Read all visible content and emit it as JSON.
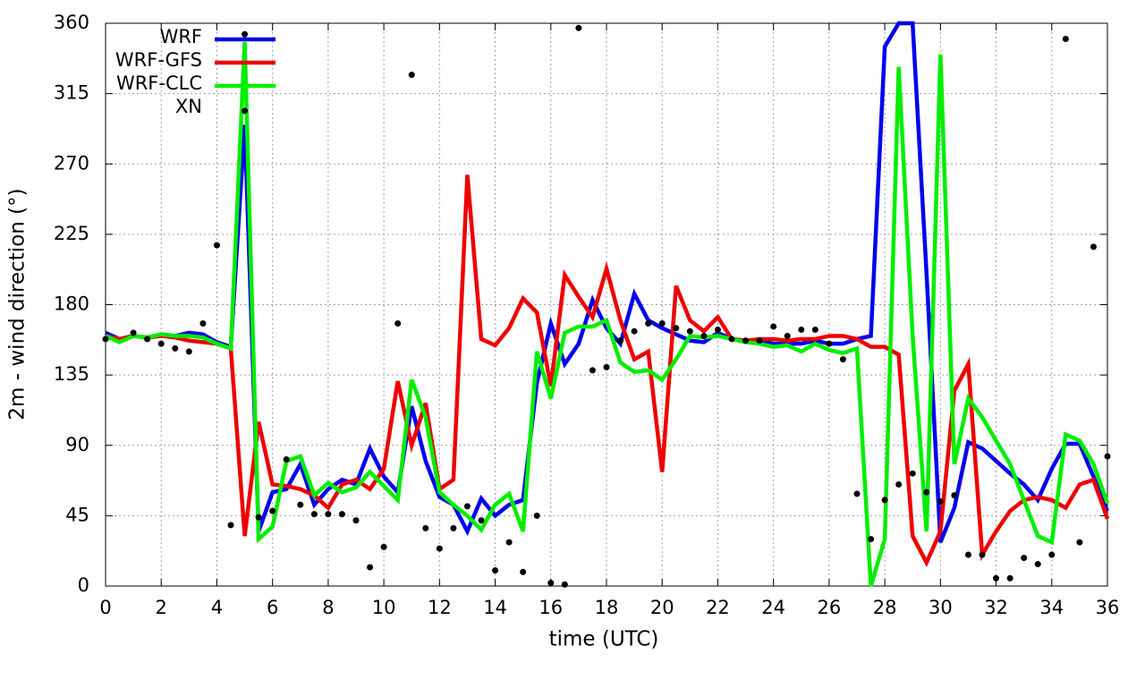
{
  "chart_data": {
    "type": "line",
    "xlabel": "time (UTC)",
    "ylabel": "2m - wind direction (°)",
    "x": [
      0,
      0.5,
      1,
      1.5,
      2,
      2.5,
      3,
      3.5,
      4,
      4.5,
      5,
      5.5,
      6,
      6.5,
      7,
      7.5,
      8,
      8.5,
      9,
      9.5,
      10,
      10.5,
      11,
      11.5,
      12,
      12.5,
      13,
      13.5,
      14,
      14.5,
      15,
      15.5,
      16,
      16.5,
      17,
      17.5,
      18,
      18.5,
      19,
      19.5,
      20,
      20.5,
      21,
      21.5,
      22,
      22.5,
      23,
      23.5,
      24,
      24.5,
      25,
      25.5,
      26,
      26.5,
      27,
      27.5,
      28,
      28.5,
      29,
      29.5,
      30,
      30.5,
      31,
      31.5,
      32,
      32.5,
      33,
      33.5,
      34,
      34.5,
      35,
      35.5,
      36
    ],
    "series": [
      {
        "name": "WRF",
        "color": "#0000ee",
        "values": [
          162,
          158,
          160,
          159,
          161,
          160,
          162,
          161,
          156,
          153,
          295,
          35,
          60,
          62,
          78,
          52,
          62,
          68,
          65,
          88,
          70,
          60,
          115,
          80,
          57,
          52,
          35,
          56,
          45,
          52,
          55,
          130,
          168,
          142,
          155,
          183,
          165,
          155,
          187,
          170,
          165,
          161,
          157,
          156,
          162,
          158,
          157,
          157,
          155,
          155,
          155,
          157,
          155,
          155,
          158,
          160,
          345,
          360,
          360,
          200,
          28,
          50,
          92,
          88,
          80,
          72,
          65,
          55,
          75,
          91,
          91,
          70,
          48
        ]
      },
      {
        "name": "WRF-GFS",
        "color": "#ee0000",
        "values": [
          160,
          158,
          160,
          159,
          160,
          159,
          157,
          156,
          155,
          152,
          32,
          105,
          65,
          64,
          62,
          58,
          50,
          65,
          68,
          62,
          75,
          131,
          90,
          117,
          62,
          68,
          263,
          158,
          154,
          165,
          184,
          175,
          128,
          199,
          185,
          172,
          203,
          170,
          145,
          150,
          73,
          192,
          170,
          163,
          172,
          158,
          157,
          158,
          158,
          157,
          158,
          158,
          160,
          160,
          158,
          153,
          153,
          148,
          32,
          15,
          35,
          125,
          142,
          20,
          35,
          48,
          55,
          57,
          55,
          50,
          65,
          68,
          43
        ]
      },
      {
        "name": "WRF-CLC",
        "color": "#00ee00",
        "values": [
          160,
          156,
          160,
          159,
          161,
          160,
          160,
          159,
          155,
          152,
          348,
          30,
          38,
          80,
          83,
          58,
          66,
          60,
          63,
          73,
          64,
          55,
          132,
          108,
          60,
          52,
          45,
          36,
          52,
          59,
          35,
          150,
          120,
          162,
          166,
          166,
          170,
          143,
          137,
          138,
          132,
          145,
          160,
          159,
          160,
          158,
          156,
          155,
          153,
          154,
          150,
          155,
          151,
          149,
          152,
          0,
          30,
          332,
          160,
          35,
          340,
          78,
          120,
          108,
          93,
          78,
          55,
          32,
          28,
          97,
          93,
          78,
          53
        ]
      },
      {
        "name": "XN",
        "type": "scatter",
        "color": "#000000",
        "x": [
          0,
          1,
          1.5,
          2,
          2.5,
          3,
          3.5,
          4,
          4.5,
          5,
          5,
          5.5,
          6,
          6.5,
          7,
          7.5,
          8,
          8.5,
          9,
          9.5,
          10,
          10.5,
          11,
          11.5,
          12,
          12.5,
          13,
          13.5,
          14,
          14.5,
          15,
          15.5,
          16,
          16.5,
          17,
          17.5,
          18,
          18.5,
          19,
          19.5,
          20,
          20.5,
          21,
          21.5,
          22,
          22.5,
          23,
          23.5,
          24,
          24.5,
          25,
          25.5,
          26,
          26.5,
          27,
          27.5,
          28,
          28.5,
          29,
          29.5,
          30,
          30.5,
          31,
          31.5,
          32,
          32.5,
          33,
          33.5,
          34,
          34.5,
          35,
          35.5,
          36
        ],
        "values": [
          158,
          162,
          158,
          155,
          152,
          150,
          168,
          218,
          39,
          353,
          304,
          44,
          48,
          81,
          52,
          46,
          46,
          46,
          42,
          12,
          25,
          168,
          327,
          37,
          24,
          37,
          51,
          42,
          10,
          28,
          9,
          45,
          2,
          1,
          357,
          138,
          140,
          157,
          163,
          168,
          168,
          165,
          163,
          160,
          164,
          158,
          157,
          157,
          166,
          160,
          164,
          164,
          155,
          145,
          59,
          30,
          55,
          65,
          72,
          60,
          54,
          58,
          20,
          20,
          5,
          5,
          18,
          14,
          20,
          350,
          28,
          217,
          83
        ]
      }
    ],
    "xlim": [
      0,
      36
    ],
    "xticks": [
      0,
      2,
      4,
      6,
      8,
      10,
      12,
      14,
      16,
      18,
      20,
      22,
      24,
      26,
      28,
      30,
      32,
      34,
      36
    ],
    "ylim": [
      0,
      360
    ],
    "yticks": [
      0,
      45,
      90,
      135,
      180,
      225,
      270,
      315,
      360
    ],
    "grid": true,
    "legend": "upper left"
  }
}
